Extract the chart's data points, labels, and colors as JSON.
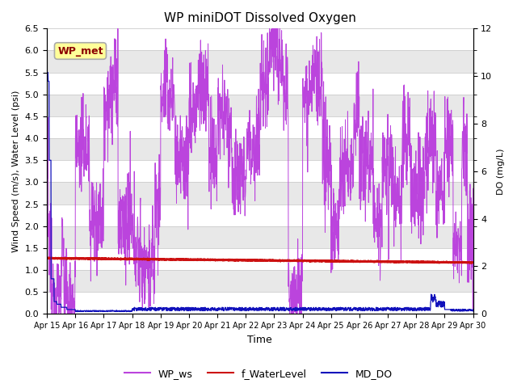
{
  "title": "WP miniDOT Dissolved Oxygen",
  "xlabel": "Time",
  "ylabel_left": "Wind Speed (m/s), Water Level (psi)",
  "ylabel_right": "DO (mg/L)",
  "annotation_text": "WP_met",
  "annotation_color": "#8B0000",
  "annotation_bg": "#FFFF99",
  "annotation_border": "#AAAAAA",
  "left_ylim": [
    0,
    6.5
  ],
  "right_ylim": [
    0,
    12
  ],
  "left_yticks": [
    0.0,
    0.5,
    1.0,
    1.5,
    2.0,
    2.5,
    3.0,
    3.5,
    4.0,
    4.5,
    5.0,
    5.5,
    6.0,
    6.5
  ],
  "right_yticks": [
    0,
    2,
    4,
    6,
    8,
    10,
    12
  ],
  "bg_color": "#ffffff",
  "plot_bg_color": "#ffffff",
  "wp_ws_color": "#BB44DD",
  "f_waterlevel_color": "#CC1111",
  "md_do_color": "#1111BB",
  "legend_labels": [
    "WP_ws",
    "f_WaterLevel",
    "MD_DO"
  ],
  "x_tick_days": [
    15,
    16,
    17,
    18,
    19,
    20,
    21,
    22,
    23,
    24,
    25,
    26,
    27,
    28,
    29,
    30
  ],
  "stripe_color": "#e8e8e8",
  "grid_color": "#cccccc"
}
